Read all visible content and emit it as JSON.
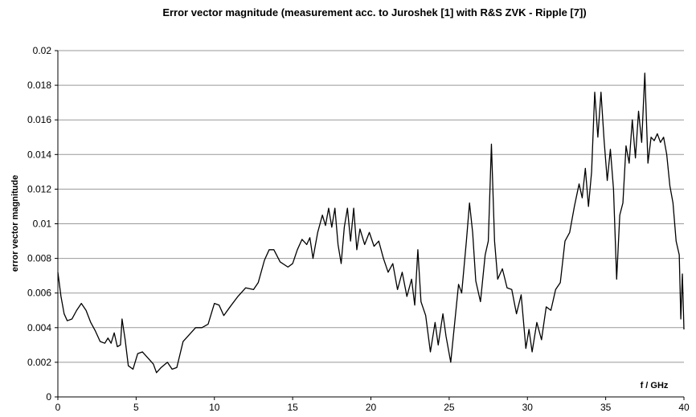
{
  "chart_data": {
    "type": "line",
    "title": "Error vector magnitude (measurement acc. to Juroshek [1] with R&S ZVK - Ripple [7])",
    "x_label": "f / GHz",
    "y_label": "error vector magnitude",
    "xlim": [
      0,
      40
    ],
    "xticks": [
      0,
      5,
      10,
      15,
      20,
      25,
      30,
      35,
      40
    ],
    "ylim": [
      0,
      0.02
    ],
    "yticks": [
      0,
      0.002,
      0.004,
      0.006,
      0.008,
      0.01,
      0.012,
      0.014,
      0.016,
      0.018,
      0.02
    ],
    "grid": true,
    "x": [
      0,
      0.2,
      0.4,
      0.6,
      0.9,
      1.2,
      1.5,
      1.8,
      2.1,
      2.4,
      2.7,
      3.0,
      3.2,
      3.4,
      3.6,
      3.8,
      4.0,
      4.1,
      4.3,
      4.5,
      4.8,
      5.1,
      5.4,
      5.8,
      6.1,
      6.3,
      6.6,
      7.0,
      7.3,
      7.6,
      8.0,
      8.4,
      8.8,
      9.2,
      9.6,
      10.0,
      10.3,
      10.6,
      11.0,
      11.5,
      12.0,
      12.5,
      12.8,
      13.2,
      13.5,
      13.8,
      14.2,
      14.7,
      15.0,
      15.3,
      15.6,
      15.9,
      16.1,
      16.3,
      16.6,
      16.9,
      17.1,
      17.3,
      17.5,
      17.7,
      17.9,
      18.1,
      18.3,
      18.5,
      18.7,
      18.9,
      19.1,
      19.3,
      19.6,
      19.9,
      20.2,
      20.5,
      20.8,
      21.1,
      21.4,
      21.7,
      22.0,
      22.3,
      22.6,
      22.8,
      23.0,
      23.2,
      23.5,
      23.8,
      24.1,
      24.3,
      24.6,
      24.8,
      25.1,
      25.4,
      25.6,
      25.8,
      26.1,
      26.3,
      26.5,
      26.7,
      27.0,
      27.3,
      27.5,
      27.7,
      27.9,
      28.1,
      28.4,
      28.7,
      29.0,
      29.3,
      29.6,
      29.9,
      30.1,
      30.3,
      30.6,
      30.9,
      31.2,
      31.5,
      31.8,
      32.1,
      32.4,
      32.7,
      33.0,
      33.3,
      33.5,
      33.7,
      33.9,
      34.1,
      34.3,
      34.5,
      34.7,
      34.9,
      35.1,
      35.3,
      35.5,
      35.7,
      35.9,
      36.1,
      36.3,
      36.5,
      36.7,
      36.9,
      37.1,
      37.3,
      37.5,
      37.7,
      37.9,
      38.1,
      38.3,
      38.5,
      38.7,
      38.9,
      39.1,
      39.3,
      39.5,
      39.7,
      39.8,
      39.9,
      40.0
    ],
    "series": [
      {
        "color": "#000000",
        "values": [
          0.0072,
          0.0058,
          0.0048,
          0.0044,
          0.0045,
          0.005,
          0.0054,
          0.005,
          0.0043,
          0.0038,
          0.0032,
          0.0031,
          0.0034,
          0.0031,
          0.0037,
          0.0029,
          0.003,
          0.0045,
          0.0033,
          0.0018,
          0.0016,
          0.0025,
          0.0026,
          0.0022,
          0.0019,
          0.0014,
          0.0017,
          0.002,
          0.0016,
          0.0017,
          0.0032,
          0.0036,
          0.004,
          0.004,
          0.0042,
          0.0054,
          0.0053,
          0.0047,
          0.0052,
          0.0058,
          0.0063,
          0.0062,
          0.0066,
          0.0079,
          0.0085,
          0.0085,
          0.0078,
          0.0075,
          0.0077,
          0.0085,
          0.0091,
          0.0088,
          0.0092,
          0.008,
          0.0095,
          0.0105,
          0.0099,
          0.0109,
          0.0098,
          0.0109,
          0.0088,
          0.0077,
          0.0098,
          0.0109,
          0.009,
          0.0109,
          0.0085,
          0.0097,
          0.0088,
          0.0095,
          0.0087,
          0.009,
          0.008,
          0.0072,
          0.0077,
          0.0062,
          0.0072,
          0.0058,
          0.0068,
          0.0053,
          0.0085,
          0.0055,
          0.0047,
          0.0026,
          0.0043,
          0.003,
          0.0048,
          0.0035,
          0.002,
          0.0047,
          0.0065,
          0.006,
          0.009,
          0.0112,
          0.0095,
          0.0067,
          0.0055,
          0.0082,
          0.009,
          0.0146,
          0.009,
          0.0068,
          0.0074,
          0.0063,
          0.0062,
          0.0048,
          0.0059,
          0.0028,
          0.0039,
          0.0026,
          0.0043,
          0.0033,
          0.0052,
          0.005,
          0.0062,
          0.0066,
          0.009,
          0.0095,
          0.011,
          0.0123,
          0.0115,
          0.0132,
          0.011,
          0.013,
          0.0176,
          0.015,
          0.0176,
          0.0148,
          0.0125,
          0.0143,
          0.012,
          0.0068,
          0.0105,
          0.0112,
          0.0145,
          0.0135,
          0.016,
          0.0138,
          0.0165,
          0.0147,
          0.0187,
          0.0135,
          0.015,
          0.0148,
          0.0152,
          0.0147,
          0.015,
          0.014,
          0.0122,
          0.0112,
          0.009,
          0.0082,
          0.0045,
          0.0071,
          0.0039
        ]
      }
    ]
  }
}
